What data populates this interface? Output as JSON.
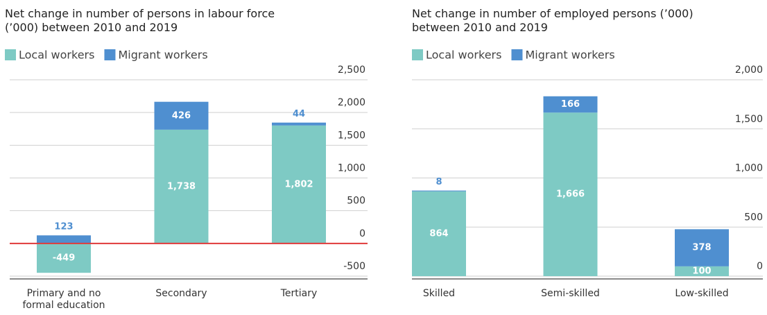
{
  "chart_data": [
    {
      "type": "bar",
      "stacked": true,
      "title": "Net change in number of persons in labour force (’000) between 2010 and 2019",
      "categories": [
        "Primary and no formal education",
        "Secondary",
        "Tertiary"
      ],
      "series": [
        {
          "name": "Local workers",
          "color": "#7ecac4",
          "values": [
            -449,
            1738,
            1802
          ],
          "value_labels": [
            "-449",
            "1,738",
            "1,802"
          ]
        },
        {
          "name": "Migrant workers",
          "color": "#4f8fd0",
          "values": [
            123,
            426,
            44
          ]
        }
      ],
      "ylim": [
        -500,
        2500
      ],
      "yticks": [
        -500,
        0,
        500,
        {
          "value": 1000,
          "label": "1,000"
        },
        {
          "value": 1500,
          "label": "1,500"
        },
        {
          "value": 2000,
          "label": "2,000"
        },
        {
          "value": 2500,
          "label": "2,500"
        }
      ],
      "grid": true,
      "zero_line_color": "#e03a3a"
    },
    {
      "type": "bar",
      "stacked": true,
      "title": "Net change in number of employed persons (’000) between 2010 and 2019",
      "categories": [
        "Skilled",
        "Semi-skilled",
        "Low-skilled"
      ],
      "series": [
        {
          "name": "Local workers",
          "color": "#7ecac4",
          "values": [
            864,
            1666,
            100
          ],
          "value_labels": [
            "864",
            "1,666",
            "100"
          ]
        },
        {
          "name": "Migrant workers",
          "color": "#4f8fd0",
          "values": [
            8,
            166,
            378
          ]
        }
      ],
      "ylim": [
        0,
        2000
      ],
      "yticks": [
        0,
        500,
        {
          "value": 1000,
          "label": "1,000"
        },
        {
          "value": 1500,
          "label": "1,500"
        },
        {
          "value": 2000,
          "label": "2,000"
        }
      ],
      "grid": true
    }
  ]
}
